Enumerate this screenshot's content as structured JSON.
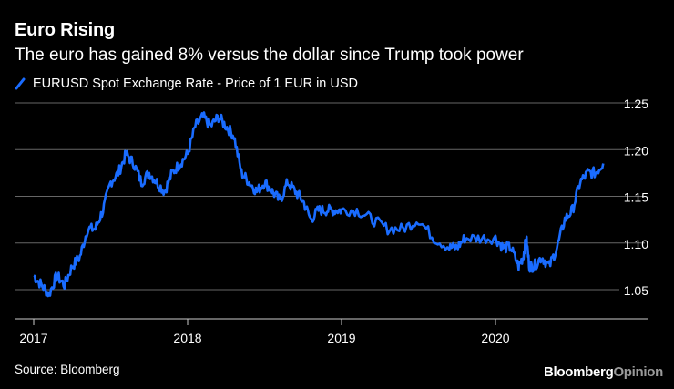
{
  "header": {
    "title": "Euro Rising",
    "subtitle": "The euro has gained 8% versus the dollar since Trump took power"
  },
  "footer": {
    "source": "Source: Bloomberg",
    "brand_primary": "Bloomberg",
    "brand_secondary": "Opinion"
  },
  "colors": {
    "background": "#000000",
    "line": "#1a6cff",
    "grid": "#666666",
    "text": "#ffffff"
  },
  "chart_data": {
    "type": "line",
    "title": "Euro Rising",
    "subtitle": "The euro has gained 8% versus the dollar since Trump took power",
    "xlabel": "",
    "ylabel": "",
    "x_ticks": [
      "2017",
      "2018",
      "2019",
      "2020"
    ],
    "y_ticks": [
      "1.05",
      "1.10",
      "1.15",
      "1.20",
      "1.25"
    ],
    "x_range": [
      2017.0,
      2020.75
    ],
    "ylim": [
      1.035,
      1.26
    ],
    "grid": true,
    "legend_position": "top-left",
    "y_axis_side": "right",
    "series": [
      {
        "name": "EURUSD Spot Exchange Rate - Price of 1 EUR in USD",
        "x": [
          2017.0,
          2017.05,
          2017.1,
          2017.15,
          2017.2,
          2017.25,
          2017.3,
          2017.35,
          2017.4,
          2017.45,
          2017.5,
          2017.55,
          2017.6,
          2017.65,
          2017.7,
          2017.75,
          2017.8,
          2017.85,
          2017.9,
          2017.95,
          2018.0,
          2018.05,
          2018.1,
          2018.15,
          2018.2,
          2018.25,
          2018.3,
          2018.35,
          2018.4,
          2018.45,
          2018.5,
          2018.55,
          2018.6,
          2018.65,
          2018.7,
          2018.75,
          2018.8,
          2018.85,
          2018.9,
          2018.95,
          2019.0,
          2019.1,
          2019.2,
          2019.3,
          2019.4,
          2019.5,
          2019.6,
          2019.7,
          2019.75,
          2019.8,
          2019.9,
          2020.0,
          2020.05,
          2020.1,
          2020.15,
          2020.18,
          2020.2,
          2020.22,
          2020.25,
          2020.3,
          2020.35,
          2020.4,
          2020.45,
          2020.5,
          2020.55,
          2020.6,
          2020.65,
          2020.7
        ],
        "values": [
          1.07,
          1.06,
          1.05,
          1.07,
          1.06,
          1.08,
          1.09,
          1.12,
          1.12,
          1.14,
          1.17,
          1.18,
          1.2,
          1.19,
          1.17,
          1.18,
          1.17,
          1.16,
          1.18,
          1.19,
          1.2,
          1.23,
          1.24,
          1.23,
          1.24,
          1.23,
          1.22,
          1.18,
          1.17,
          1.16,
          1.17,
          1.16,
          1.15,
          1.17,
          1.16,
          1.15,
          1.13,
          1.14,
          1.14,
          1.14,
          1.14,
          1.14,
          1.13,
          1.12,
          1.12,
          1.13,
          1.11,
          1.1,
          1.1,
          1.11,
          1.11,
          1.11,
          1.1,
          1.1,
          1.08,
          1.09,
          1.11,
          1.08,
          1.08,
          1.09,
          1.08,
          1.1,
          1.13,
          1.14,
          1.17,
          1.18,
          1.18,
          1.19
        ]
      }
    ]
  }
}
